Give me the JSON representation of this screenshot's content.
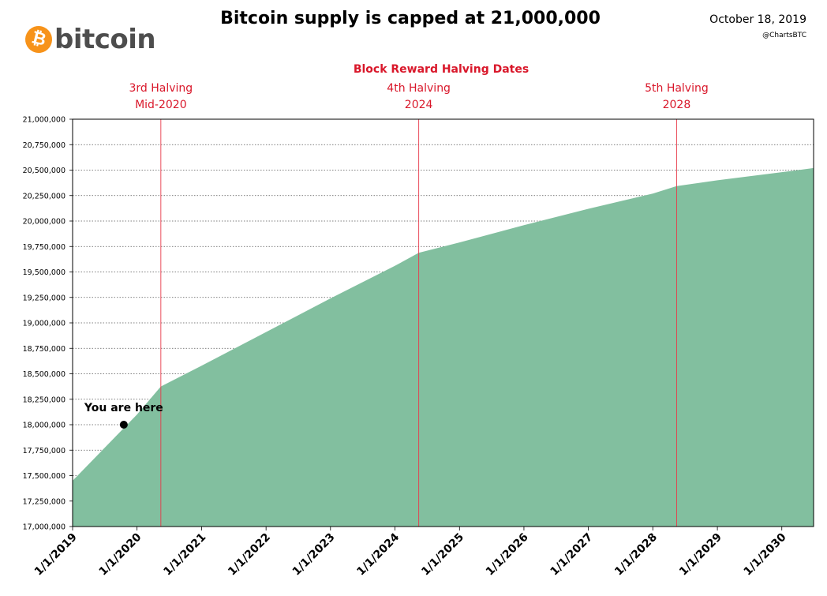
{
  "header": {
    "logo_symbol": "₿",
    "logo_text": "bitcoin",
    "title": "Bitcoin supply is capped at 21,000,000",
    "date": "October 18, 2019",
    "handle": "@ChartsBTC"
  },
  "chart_data": {
    "type": "area",
    "subtitle": "Block Reward Halving Dates",
    "x": [
      "2019-01-01",
      "2020-01-01",
      "2020-05-15",
      "2021-01-01",
      "2022-01-01",
      "2023-01-01",
      "2024-01-01",
      "2024-05-15",
      "2025-01-01",
      "2026-01-01",
      "2027-01-01",
      "2028-01-01",
      "2028-05-15",
      "2029-01-01",
      "2030-01-01",
      "2030-06-30"
    ],
    "y": [
      17450000,
      18100000,
      18375000,
      18580000,
      18910000,
      19240000,
      19560000,
      19687500,
      19790000,
      19960000,
      20120000,
      20270000,
      20343750,
      20400000,
      20480000,
      20520000
    ],
    "ylim": [
      17000000,
      21000000
    ],
    "xlim": [
      "2019-01-01",
      "2030-06-30"
    ],
    "y_ticks": [
      17000000,
      17250000,
      17500000,
      17750000,
      18000000,
      18250000,
      18500000,
      18750000,
      19000000,
      19250000,
      19500000,
      19750000,
      20000000,
      20250000,
      20500000,
      20750000,
      21000000
    ],
    "y_tick_labels": [
      "17,000,000",
      "17,250,000",
      "17,500,000",
      "17,750,000",
      "18,000,000",
      "18,250,000",
      "18,500,000",
      "18,750,000",
      "19,000,000",
      "19,250,000",
      "19,500,000",
      "19,750,000",
      "20,000,000",
      "20,250,000",
      "20,500,000",
      "20,750,000",
      "21,000,000"
    ],
    "x_tick_labels": [
      "1/1/2019",
      "1/1/2020",
      "1/1/2021",
      "1/1/2022",
      "1/1/2023",
      "1/1/2024",
      "1/1/2025",
      "1/1/2026",
      "1/1/2027",
      "1/1/2028",
      "1/1/2029",
      "1/1/2030"
    ],
    "grid": "horizontal dotted",
    "halvings": [
      {
        "date": "2020-05-15",
        "label1": "3rd Halving",
        "label2": "Mid-2020"
      },
      {
        "date": "2024-05-15",
        "label1": "4th Halving",
        "label2": "2024"
      },
      {
        "date": "2028-05-15",
        "label1": "5th Halving",
        "label2": "2028"
      }
    ],
    "marker": {
      "date": "2019-10-18",
      "value": 18000000,
      "label": "You are here"
    },
    "colors": {
      "area": "#82bf9f",
      "halving": "#e8394a",
      "halving_text": "#d9172a",
      "marker": "#000000"
    }
  }
}
